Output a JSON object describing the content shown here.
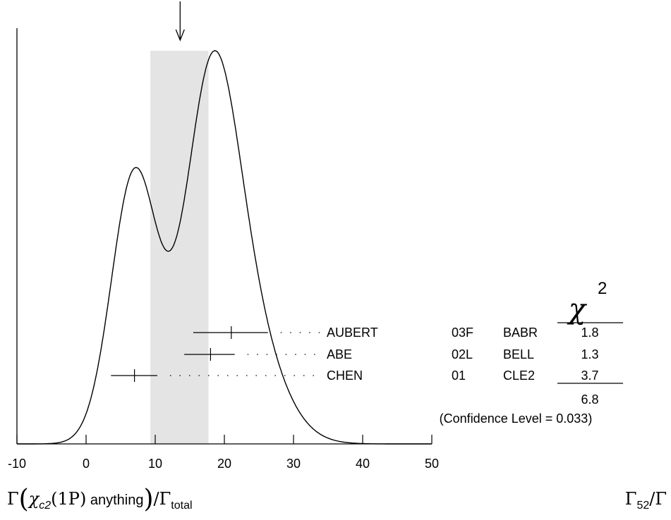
{
  "chart_data": {
    "type": "ideogram",
    "xlim": [
      -10,
      50
    ],
    "x_ticks": [
      "-10",
      "0",
      "10",
      "20",
      "30",
      "40",
      "50"
    ],
    "x_tick_values": [
      -10,
      0,
      10,
      20,
      30,
      40,
      50
    ],
    "average": 13.6,
    "average_band": [
      9.3,
      17.7
    ],
    "measurements": [
      {
        "author": "AUBERT",
        "year": "03F",
        "experiment": "BABR",
        "value": 21.0,
        "err_low": 5.5,
        "err_high": 5.3,
        "chi2": "1.8"
      },
      {
        "author": "ABE",
        "year": "02L",
        "experiment": "BELL",
        "value": 18.0,
        "err_low": 3.8,
        "err_high": 3.5,
        "chi2": "1.3"
      },
      {
        "author": "CHEN",
        "year": "01",
        "experiment": "CLE2",
        "value": 7.0,
        "err_low": 3.4,
        "err_high": 3.3,
        "chi2": "3.7"
      }
    ],
    "chi2_header": "χ",
    "chi2_header_sup": "2",
    "chi2_total": "6.8",
    "confidence_level": "(Confidence Level = 0.033)",
    "x_quantity": {
      "gamma": "Γ",
      "chi": "χ",
      "chi_sub": "c2",
      "state": "(1P)",
      "rest": " anything",
      "slash": "/Γ",
      "total_sub": "total"
    },
    "ratio_label": {
      "gamma": "Γ",
      "sub": "52",
      "slash": "/Γ"
    }
  }
}
